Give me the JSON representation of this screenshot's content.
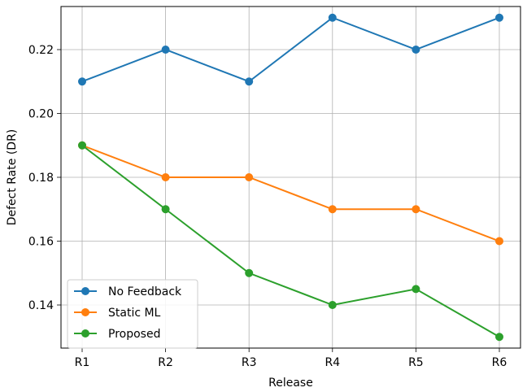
{
  "chart_data": {
    "type": "line",
    "title": "",
    "xlabel": "Release",
    "ylabel": "Defect Rate (DR)",
    "categories": [
      "R1",
      "R2",
      "R3",
      "R4",
      "R5",
      "R6"
    ],
    "yticks": [
      0.14,
      0.16,
      0.18,
      0.2,
      0.22
    ],
    "ytick_labels": [
      "0.14",
      "0.16",
      "0.18",
      "0.20",
      "0.22"
    ],
    "ylim": [
      0.1265,
      0.2335
    ],
    "grid": true,
    "legend_position": "lower-left",
    "series": [
      {
        "name": "No Feedback",
        "color": "#1f77b4",
        "values": [
          0.21,
          0.22,
          0.21,
          0.23,
          0.22,
          0.23
        ]
      },
      {
        "name": "Static ML",
        "color": "#ff7f0e",
        "values": [
          0.19,
          0.18,
          0.18,
          0.17,
          0.17,
          0.16
        ]
      },
      {
        "name": "Proposed",
        "color": "#2ca02c",
        "values": [
          0.19,
          0.17,
          0.15,
          0.14,
          0.145,
          0.13
        ]
      }
    ]
  }
}
